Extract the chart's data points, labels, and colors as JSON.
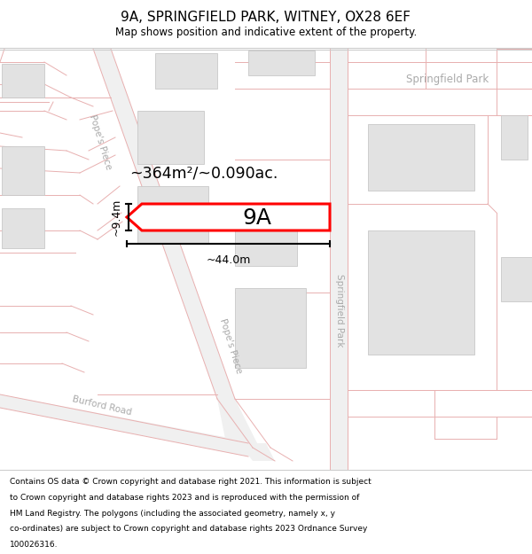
{
  "title": "9A, SPRINGFIELD PARK, WITNEY, OX28 6EF",
  "subtitle": "Map shows position and indicative extent of the property.",
  "footer_lines": [
    "Contains OS data © Crown copyright and database right 2021. This information is subject",
    "to Crown copyright and database rights 2023 and is reproduced with the permission of",
    "HM Land Registry. The polygons (including the associated geometry, namely x, y",
    "co-ordinates) are subject to Crown copyright and database rights 2023 Ordnance Survey",
    "100026316."
  ],
  "map_bg": "#f7f7f7",
  "road_color": "#f0f0f0",
  "road_line": "#e8b0b0",
  "building_fill": "#e2e2e2",
  "building_edge": "#c8c8c8",
  "highlight_line": "#ff0000",
  "highlight_fill": "#ffffff",
  "measure_color": "#000000",
  "area_label": "~364m²/~0.090ac.",
  "width_label": "~44.0m",
  "height_label": "~9.4m",
  "plot_label": "9A",
  "label_popes_piece_upper": "Pope's Piece",
  "label_popes_piece_lower": "Pope's Piece",
  "label_springfield_park_road": "Springfield Park",
  "label_burford_road": "Burford Road",
  "label_springfield_park_district": "Springfield Park",
  "title_fontsize": 11,
  "subtitle_fontsize": 8.5,
  "footer_fontsize": 6.5,
  "label_color": "#aaaaaa"
}
